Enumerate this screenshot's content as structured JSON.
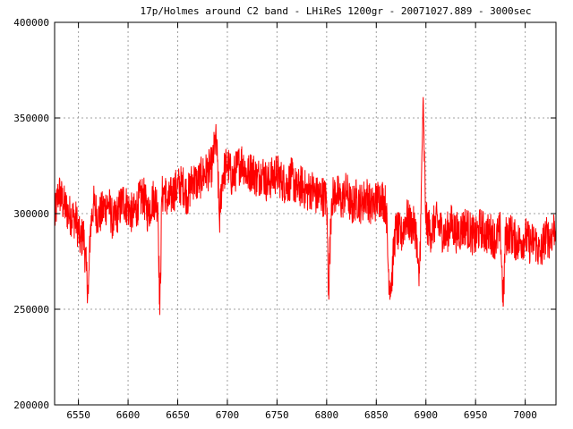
{
  "chart_data": {
    "type": "line",
    "title": "17p/Holmes around C2 band - LHiReS 1200gr - 20071027.889 - 3000sec",
    "xlabel": "",
    "ylabel": "",
    "xlim": [
      6526,
      7031
    ],
    "ylim": [
      200000,
      400000
    ],
    "x_ticks": [
      6550,
      6600,
      6650,
      6700,
      6750,
      6800,
      6850,
      6900,
      6950,
      7000
    ],
    "x_tick_labels": [
      "6550",
      "6600",
      "6650",
      "6700",
      "6750",
      "6800",
      "6850",
      "6900",
      "6950",
      "7000"
    ],
    "y_ticks": [
      200000,
      250000,
      300000,
      350000,
      400000
    ],
    "y_tick_labels": [
      "200000",
      "250000",
      "300000",
      "350000",
      "400000"
    ],
    "grid": true,
    "series": [
      {
        "name": "",
        "color": "#ff0000",
        "x": [
          6526,
          6530,
          6535,
          6540,
          6545,
          6548,
          6552,
          6555,
          6558,
          6560,
          6562,
          6565,
          6570,
          6575,
          6580,
          6585,
          6590,
          6595,
          6600,
          6605,
          6610,
          6615,
          6620,
          6625,
          6630,
          6632,
          6634,
          6637,
          6640,
          6645,
          6650,
          6655,
          6660,
          6665,
          6670,
          6675,
          6680,
          6685,
          6688,
          6690,
          6692,
          6695,
          6700,
          6705,
          6710,
          6715,
          6720,
          6725,
          6730,
          6735,
          6740,
          6745,
          6750,
          6755,
          6760,
          6765,
          6770,
          6775,
          6780,
          6785,
          6790,
          6795,
          6800,
          6802,
          6805,
          6810,
          6815,
          6820,
          6825,
          6830,
          6835,
          6840,
          6845,
          6850,
          6855,
          6860,
          6862,
          6864,
          6866,
          6868,
          6870,
          6875,
          6880,
          6885,
          6890,
          6893,
          6895,
          6897,
          6900,
          6905,
          6910,
          6915,
          6920,
          6925,
          6930,
          6935,
          6940,
          6945,
          6950,
          6955,
          6960,
          6965,
          6970,
          6975,
          6978,
          6980,
          6985,
          6990,
          6995,
          7000,
          7005,
          7010,
          7015,
          7020,
          7025,
          7031
        ],
        "y": [
          296000,
          312000,
          305000,
          300000,
          298000,
          296000,
          285000,
          290000,
          270000,
          258000,
          292000,
          305000,
          298000,
          302000,
          306000,
          295000,
          301000,
          307000,
          303000,
          299000,
          305000,
          310000,
          300000,
          308000,
          306000,
          247000,
          309000,
          312000,
          305000,
          311000,
          314000,
          315000,
          309000,
          318000,
          316000,
          320000,
          322000,
          325000,
          340000,
          327000,
          296000,
          320000,
          326000,
          318000,
          324000,
          328000,
          320000,
          323000,
          318000,
          322000,
          316000,
          319000,
          321000,
          317000,
          315000,
          319000,
          312000,
          315000,
          311000,
          313000,
          309000,
          310000,
          307000,
          260000,
          308000,
          311000,
          306000,
          312000,
          303000,
          308000,
          305000,
          310000,
          303000,
          307000,
          309000,
          304000,
          272000,
          262000,
          268000,
          285000,
          292000,
          288000,
          298000,
          294000,
          292000,
          262000,
          300000,
          357000,
          296000,
          290000,
          296000,
          292000,
          288000,
          295000,
          290000,
          291000,
          294000,
          290000,
          287000,
          293000,
          289000,
          290000,
          286000,
          291000,
          252000,
          288000,
          290000,
          286000,
          285000,
          288000,
          284000,
          286000,
          278000,
          288000,
          287000,
          295000
        ]
      }
    ]
  }
}
